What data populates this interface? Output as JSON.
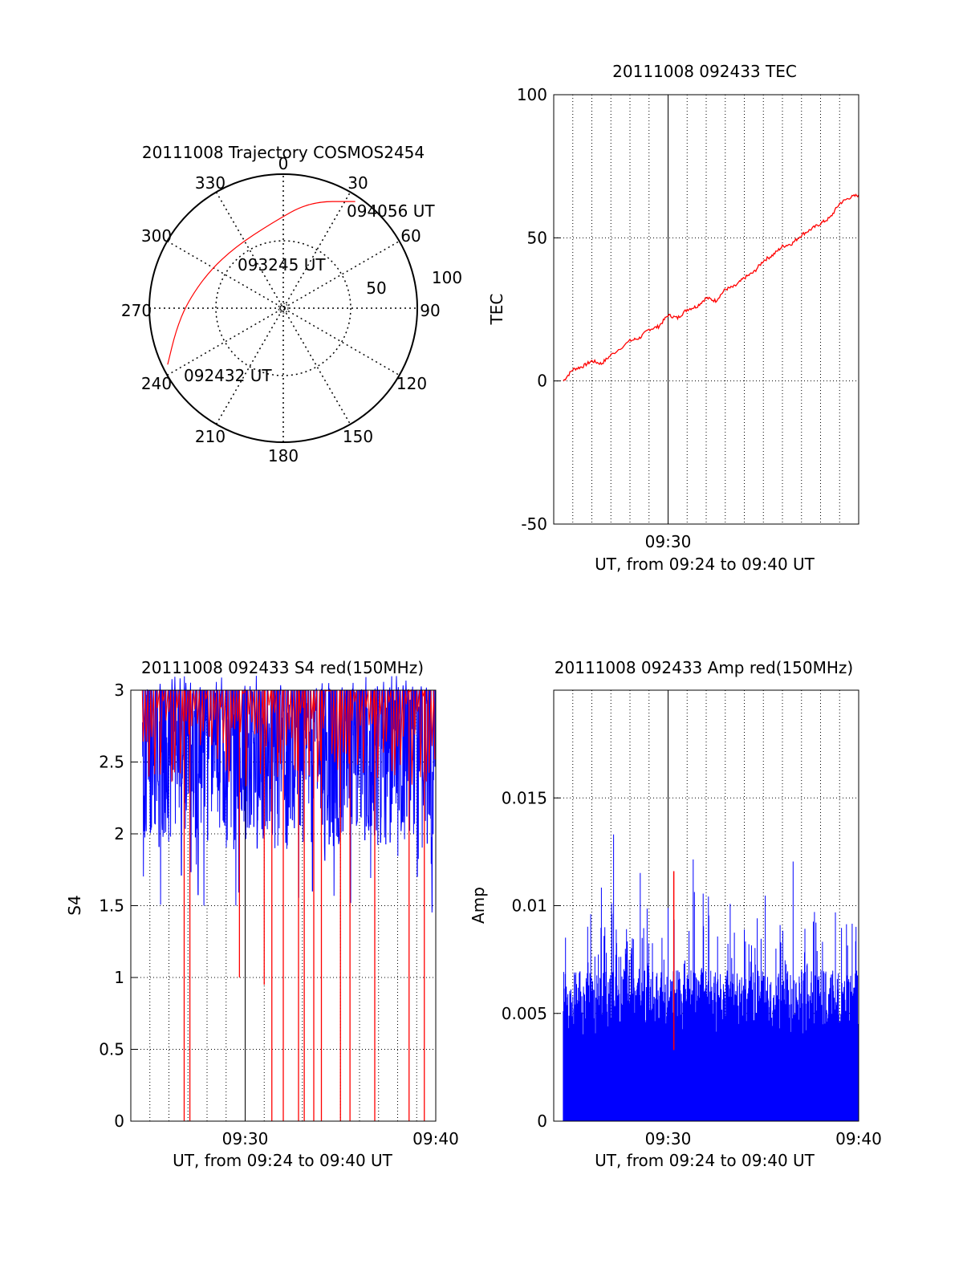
{
  "chart_data": [
    {
      "type": "polar",
      "title": "20111008 Trajectory COSMOS2454",
      "azimuth_labels": [
        "0",
        "30",
        "60",
        "90",
        "120",
        "150",
        "180",
        "210",
        "240",
        "270",
        "300",
        "330"
      ],
      "elevation_labels": [
        "50",
        "100"
      ],
      "series": [
        {
          "color": "#ff0000",
          "points": [
            {
              "az": 244,
              "r": 96
            },
            {
              "az": 258,
              "r": 82
            },
            {
              "az": 273,
              "r": 72
            },
            {
              "az": 296,
              "r": 62
            },
            {
              "az": 322,
              "r": 58
            },
            {
              "az": 352,
              "r": 64
            },
            {
              "az": 14,
              "r": 82
            },
            {
              "az": 34,
              "r": 96
            }
          ]
        }
      ],
      "annotations": [
        {
          "text": "094056 UT",
          "az": 34,
          "r": 96
        },
        {
          "text": "093245 UT",
          "az": 342,
          "r": 48
        },
        {
          "text": "092432 UT",
          "az": 230,
          "r": 74
        }
      ]
    },
    {
      "type": "line",
      "title": "20111008 092433 TEC",
      "xlabel": "UT, from 09:24 to 09:40 UT",
      "ylabel": "TEC",
      "xlim": [
        0,
        16
      ],
      "ylim": [
        -50,
        100
      ],
      "xticks": [
        {
          "value": 6,
          "label": "09:30"
        }
      ],
      "yticks": [
        -50,
        0,
        50,
        100
      ],
      "series": [
        {
          "color": "#ff0000",
          "x": [
            0.5,
            1.0,
            1.5,
            2.0,
            2.5,
            3.0,
            4.0,
            4.5,
            5.0,
            5.5,
            6.0,
            6.5,
            7.0,
            7.5,
            8.0,
            8.5,
            9.0,
            9.5,
            10.0,
            10.5,
            11.0,
            11.5,
            12.0,
            12.5,
            13.0,
            13.5,
            14.0,
            14.5,
            15.0,
            15.5,
            16.0
          ],
          "y": [
            0,
            4,
            5,
            7,
            6,
            9,
            14,
            15,
            18,
            19,
            23,
            22,
            25,
            26,
            29,
            28,
            32,
            33,
            36,
            38,
            42,
            44,
            47,
            48,
            51,
            53,
            55,
            57,
            62,
            64,
            65
          ]
        }
      ]
    },
    {
      "type": "line",
      "title": "20111008 092433 S4 red(150MHz)",
      "xlabel": "UT, from 09:24 to 09:40 UT",
      "ylabel": "S4",
      "xlim": [
        0,
        16
      ],
      "ylim": [
        0,
        3
      ],
      "xticks": [
        {
          "value": 6,
          "label": "09:30"
        },
        {
          "value": 16,
          "label": "09:40"
        }
      ],
      "yticks": [
        0,
        0.5,
        1,
        1.5,
        2,
        2.5,
        3
      ],
      "series": [
        {
          "color": "#0000ff",
          "pattern": "dense noise 1.6–3.0 spanning 0.6–16"
        },
        {
          "color": "#ff0000",
          "dips": [
            {
              "x": 2.8,
              "y": 0
            },
            {
              "x": 3.1,
              "y": 0
            },
            {
              "x": 5.7,
              "y": 1.0
            },
            {
              "x": 7.0,
              "y": 0.95
            },
            {
              "x": 7.4,
              "y": 0
            },
            {
              "x": 8.0,
              "y": 0
            },
            {
              "x": 8.8,
              "y": 0
            },
            {
              "x": 9.1,
              "y": 0
            },
            {
              "x": 9.6,
              "y": 0
            },
            {
              "x": 10.0,
              "y": 0
            },
            {
              "x": 11.0,
              "y": 0
            },
            {
              "x": 11.5,
              "y": 0
            },
            {
              "x": 12.8,
              "y": 0
            },
            {
              "x": 14.6,
              "y": 0
            },
            {
              "x": 15.4,
              "y": 0
            }
          ]
        }
      ]
    },
    {
      "type": "line",
      "title": "20111008 092433 Amp red(150MHz)",
      "xlabel": "UT, from 09:24 to 09:40 UT",
      "ylabel": "Amp",
      "xlim": [
        0,
        16
      ],
      "ylim": [
        0,
        0.02
      ],
      "xticks": [
        {
          "value": 6,
          "label": "09:30"
        },
        {
          "value": 16,
          "label": "09:40"
        }
      ],
      "yticks": [
        {
          "value": 0,
          "label": "0"
        },
        {
          "value": 0.005,
          "label": "0.005"
        },
        {
          "value": 0.01,
          "label": "0.01"
        },
        {
          "value": 0.015,
          "label": "0.015"
        }
      ],
      "series": [
        {
          "color": "#0000ff",
          "pattern": "dense noise 0–0.015 spanning 0.5–16"
        },
        {
          "color": "#ff0000",
          "spike": {
            "x": 6.3,
            "low": 0.0033,
            "high": 0.0116
          }
        }
      ]
    }
  ]
}
